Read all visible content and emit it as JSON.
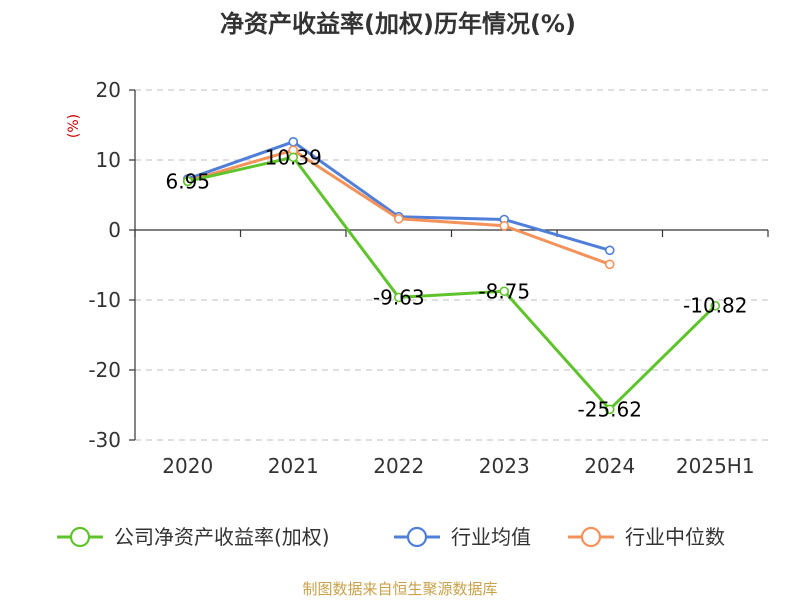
{
  "chart_data": {
    "type": "line",
    "title": "净资产收益率(加权)历年情况(%)",
    "ylabel": "(%)",
    "categories": [
      "2020",
      "2021",
      "2022",
      "2023",
      "2024",
      "2025H1"
    ],
    "ylim": [
      -30,
      20
    ],
    "yticks": [
      20,
      10,
      0,
      -10,
      -20,
      -30
    ],
    "grid": true,
    "legend_position": "bottom",
    "series": [
      {
        "name": "公司净资产收益率(加权)",
        "color": "#5fc42b",
        "values": [
          6.95,
          10.39,
          -9.63,
          -8.75,
          -25.62,
          -10.82
        ],
        "labels": [
          "6.95",
          "10.39",
          "-9.63",
          "-8.75",
          "-25.62",
          "-10.82"
        ]
      },
      {
        "name": "行业均值",
        "color": "#4f7fd8",
        "values": [
          7.3,
          12.6,
          1.9,
          1.5,
          -2.9,
          null
        ]
      },
      {
        "name": "行业中位数",
        "color": "#f4925b",
        "values": [
          7.0,
          11.4,
          1.6,
          0.6,
          -4.9,
          null
        ]
      }
    ]
  },
  "source": "制图数据来自恒生聚源数据库"
}
